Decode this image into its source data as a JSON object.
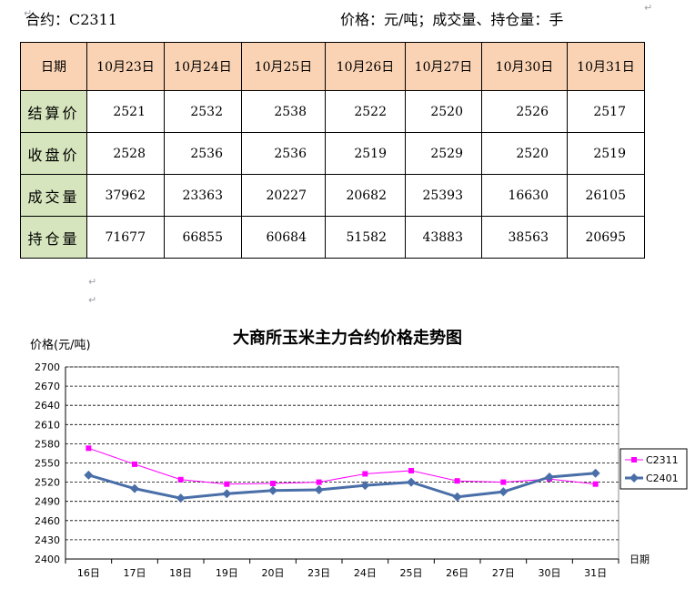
{
  "header": {
    "contract": "合约：C2311",
    "units": "价格：元/吨；成交量、持仓量：手"
  },
  "table": {
    "header_label": "日期",
    "dates": [
      "10月23日",
      "10月24日",
      "10月25日",
      "10月26日",
      "10月27日",
      "10月30日",
      "10月31日"
    ],
    "rows": [
      {
        "label": "结算价",
        "values": [
          "2521",
          "2532",
          "2538",
          "2522",
          "2520",
          "2526",
          "2517"
        ]
      },
      {
        "label": "收盘价",
        "values": [
          "2528",
          "2536",
          "2536",
          "2519",
          "2529",
          "2520",
          "2519"
        ]
      },
      {
        "label": "成交量",
        "values": [
          "37962",
          "23363",
          "20227",
          "20682",
          "25393",
          "16630",
          "26105"
        ]
      },
      {
        "label": "持仓量",
        "values": [
          "71677",
          "66855",
          "60684",
          "51582",
          "43883",
          "38563",
          "20695"
        ]
      }
    ]
  },
  "chart_data": {
    "type": "line",
    "title": "大商所玉米主力合约价格走势图",
    "ylabel": "价格(元/吨)",
    "xlabel": "日期",
    "categories": [
      "16日",
      "17日",
      "18日",
      "19日",
      "20日",
      "23日",
      "24日",
      "25日",
      "26日",
      "27日",
      "30日",
      "31日"
    ],
    "yticks": [
      2400,
      2430,
      2460,
      2490,
      2520,
      2550,
      2580,
      2610,
      2640,
      2670,
      2700
    ],
    "ylim": [
      2400,
      2700
    ],
    "grid": true,
    "legend": "right",
    "series": [
      {
        "name": "C2311",
        "color": "#ff00ff",
        "marker": "square",
        "values": [
          2573,
          2548,
          2524,
          2517,
          2518,
          2520,
          2533,
          2538,
          2522,
          2520,
          2525,
          2517
        ]
      },
      {
        "name": "C2401",
        "color": "#4a6fa8",
        "marker": "diamond",
        "values": [
          2531,
          2510,
          2495,
          2502,
          2507,
          2508,
          2515,
          2520,
          2497,
          2505,
          2528,
          2534
        ]
      }
    ]
  }
}
